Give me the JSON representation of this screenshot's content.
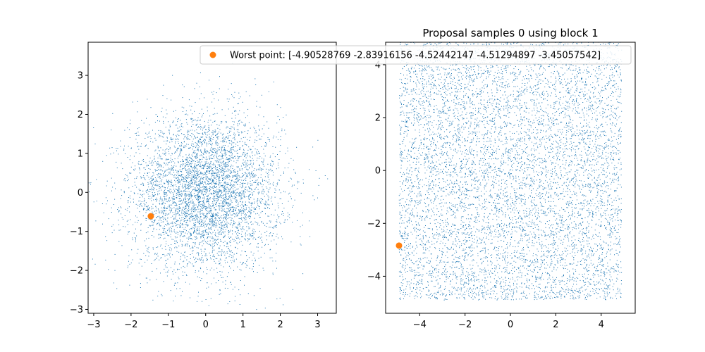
{
  "chart_data": [
    {
      "type": "scatter",
      "title": "",
      "xlabel": "",
      "ylabel": "",
      "xlim": [
        -3.15,
        3.5
      ],
      "ylim": [
        -3.1,
        3.85
      ],
      "xticks": [
        -3,
        -2,
        -1,
        0,
        1,
        2,
        3
      ],
      "yticks": [
        -3,
        -2,
        -1,
        0,
        1,
        2,
        3
      ],
      "grid": false,
      "samples": {
        "distribution": "standard-normal-2d",
        "count": 5000,
        "color": "#1f77b4"
      },
      "worst_point": {
        "x": -1.47,
        "y": -0.61,
        "color": "#ff7f0e"
      }
    },
    {
      "type": "scatter",
      "title": "Proposal samples 0 using block 1",
      "xlabel": "",
      "ylabel": "",
      "xlim": [
        -5.5,
        5.5
      ],
      "ylim": [
        -5.4,
        4.85
      ],
      "xticks": [
        -4,
        -2,
        0,
        2,
        4
      ],
      "yticks": [
        -4,
        -2,
        0,
        2,
        4
      ],
      "grid": false,
      "samples": {
        "distribution": "uniform",
        "range": [
          -4.9,
          4.9
        ],
        "count": 8000,
        "color": "#1f77b4"
      },
      "worst_point": {
        "x": -4.91,
        "y": -2.84,
        "color": "#ff7f0e"
      },
      "legend": {
        "placement": "top-right",
        "entries": [
          {
            "label": "Worst point: [-4.90528769 -2.83916156 -4.52442147 -4.51294897 -3.45057542]",
            "color": "#ff7f0e"
          }
        ]
      }
    }
  ]
}
